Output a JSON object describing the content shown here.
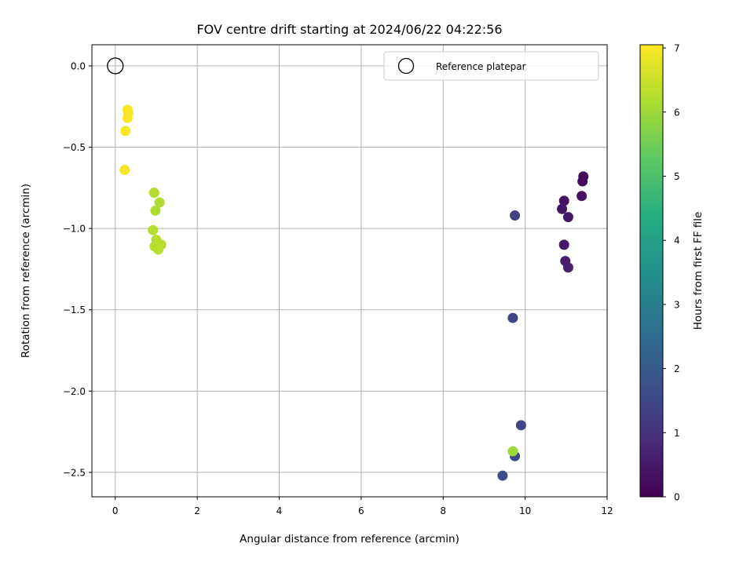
{
  "chart_data": {
    "type": "scatter",
    "title": "FOV centre drift starting at 2024/06/22 04:22:56",
    "xlabel": "Angular distance from reference (arcmin)",
    "ylabel": "Rotation from reference (arcmin)",
    "xlim": [
      -0.57,
      12.0
    ],
    "ylim": [
      -2.65,
      0.13
    ],
    "xticks": [
      0,
      2,
      4,
      6,
      8,
      10,
      12
    ],
    "xtick_labels": [
      "0",
      "2",
      "4",
      "6",
      "8",
      "10",
      "12"
    ],
    "yticks": [
      0.0,
      -0.5,
      -1.0,
      -1.5,
      -2.0,
      -2.5
    ],
    "ytick_labels": [
      "0.0",
      "−0.5",
      "−1.0",
      "−1.5",
      "−2.0",
      "−2.5"
    ],
    "grid": true,
    "legend": {
      "location": "upper right",
      "entries": [
        {
          "label": "Reference platepar",
          "marker": "open-circle"
        }
      ]
    },
    "reference_point": {
      "x": 0.0,
      "y": 0.0
    },
    "colorbar": {
      "label": "Hours from first FF file",
      "range": [
        0,
        7.05
      ],
      "ticks": [
        0,
        1,
        2,
        3,
        4,
        5,
        6,
        7
      ],
      "tick_labels": [
        "0",
        "1",
        "2",
        "3",
        "4",
        "5",
        "6",
        "7"
      ],
      "colormap": "viridis"
    },
    "points": [
      {
        "x": 11.42,
        "y": -0.68,
        "hours": 0.15
      },
      {
        "x": 11.4,
        "y": -0.71,
        "hours": 0.2
      },
      {
        "x": 11.38,
        "y": -0.8,
        "hours": 0.3
      },
      {
        "x": 10.95,
        "y": -0.83,
        "hours": 0.35
      },
      {
        "x": 10.9,
        "y": -0.88,
        "hours": 0.4
      },
      {
        "x": 11.05,
        "y": -0.93,
        "hours": 0.45
      },
      {
        "x": 10.95,
        "y": -1.1,
        "hours": 0.5
      },
      {
        "x": 10.98,
        "y": -1.2,
        "hours": 0.55
      },
      {
        "x": 11.05,
        "y": -1.24,
        "hours": 0.6
      },
      {
        "x": 9.75,
        "y": -0.92,
        "hours": 1.35
      },
      {
        "x": 9.7,
        "y": -1.55,
        "hours": 1.4
      },
      {
        "x": 9.9,
        "y": -2.21,
        "hours": 1.45
      },
      {
        "x": 9.75,
        "y": -2.4,
        "hours": 1.5
      },
      {
        "x": 9.45,
        "y": -2.52,
        "hours": 1.6
      },
      {
        "x": 9.7,
        "y": -2.37,
        "hours": 6.0
      },
      {
        "x": 0.95,
        "y": -0.78,
        "hours": 6.2
      },
      {
        "x": 1.08,
        "y": -0.84,
        "hours": 6.2
      },
      {
        "x": 0.98,
        "y": -0.89,
        "hours": 6.2
      },
      {
        "x": 0.92,
        "y": -1.01,
        "hours": 6.25
      },
      {
        "x": 1.0,
        "y": -1.07,
        "hours": 6.25
      },
      {
        "x": 1.12,
        "y": -1.1,
        "hours": 6.3
      },
      {
        "x": 0.96,
        "y": -1.11,
        "hours": 6.3
      },
      {
        "x": 1.05,
        "y": -1.13,
        "hours": 6.3
      },
      {
        "x": 0.3,
        "y": -0.27,
        "hours": 7.0
      },
      {
        "x": 0.32,
        "y": -0.29,
        "hours": 7.0
      },
      {
        "x": 0.3,
        "y": -0.32,
        "hours": 7.0
      },
      {
        "x": 0.25,
        "y": -0.4,
        "hours": 7.0
      },
      {
        "x": 0.23,
        "y": -0.64,
        "hours": 7.0
      }
    ]
  }
}
